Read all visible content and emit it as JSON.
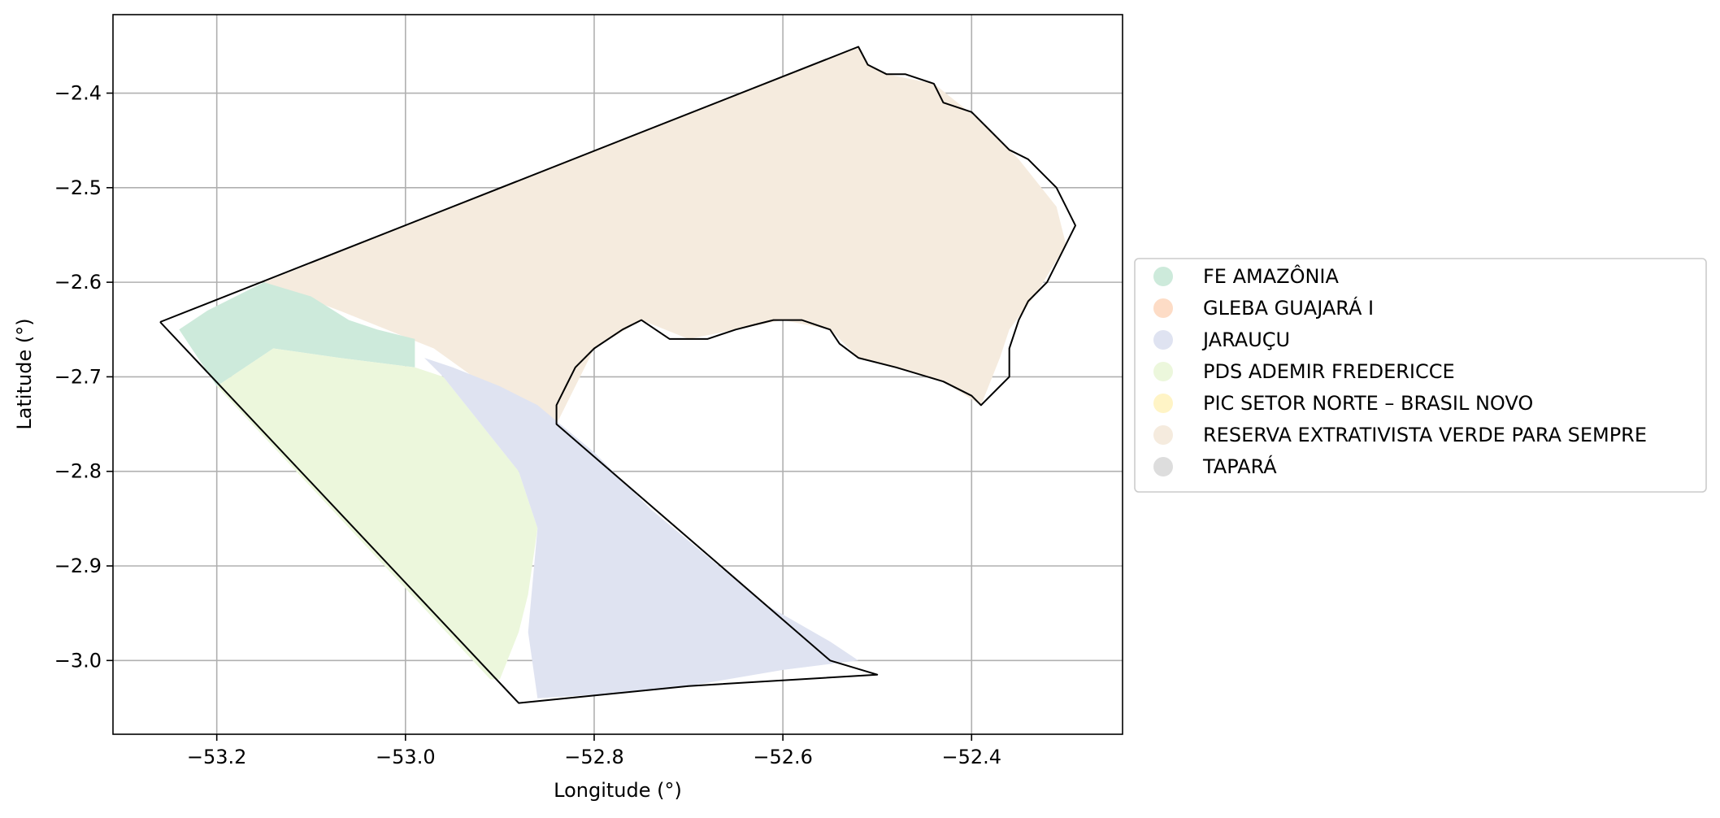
{
  "map": {
    "type": "choropleth",
    "xlabel": "Longitude (°)",
    "ylabel": "Latitude (°)",
    "xlim": [
      -53.31,
      -52.24
    ],
    "ylim": [
      -3.078,
      -2.317
    ],
    "xticks": [
      -53.2,
      -53.0,
      -52.8,
      -52.6,
      -52.4
    ],
    "yticks": [
      -2.4,
      -2.5,
      -2.6,
      -2.7,
      -2.8,
      -2.9,
      -3.0
    ],
    "grid": true,
    "legend_position": "center-right outside",
    "categories": [
      {
        "name": "FE AMAZÔNIA",
        "color": "#cdeadb"
      },
      {
        "name": "GLEBA GUAJARÁ I",
        "color": "#fddcc6"
      },
      {
        "name": "JARAUÇU",
        "color": "#dfe3f1"
      },
      {
        "name": "PDS ADEMIR FREDERICCE",
        "color": "#ecf7dc"
      },
      {
        "name": "PIC SETOR NORTE – BRASIL NOVO",
        "color": "#fff4c6"
      },
      {
        "name": "RESERVA EXTRATIVISTA VERDE PARA SEMPRE",
        "color": "#f5ebde"
      },
      {
        "name": "TAPARÁ",
        "color": "#dddddd"
      }
    ],
    "regions": [
      {
        "category": "RESERVA EXTRATIVISTA VERDE PARA SEMPRE",
        "points": [
          [
            -53.15,
            -2.6
          ],
          [
            -52.52,
            -2.351
          ],
          [
            -52.51,
            -2.37
          ],
          [
            -52.49,
            -2.38
          ],
          [
            -52.44,
            -2.39
          ],
          [
            -52.39,
            -2.43
          ],
          [
            -52.35,
            -2.47
          ],
          [
            -52.31,
            -2.52
          ],
          [
            -52.3,
            -2.56
          ],
          [
            -52.33,
            -2.61
          ],
          [
            -52.36,
            -2.65
          ],
          [
            -52.37,
            -2.68
          ],
          [
            -52.39,
            -2.73
          ],
          [
            -52.43,
            -2.705
          ],
          [
            -52.52,
            -2.68
          ],
          [
            -52.55,
            -2.65
          ],
          [
            -52.6,
            -2.64
          ],
          [
            -52.65,
            -2.65
          ],
          [
            -52.7,
            -2.66
          ],
          [
            -52.75,
            -2.64
          ],
          [
            -52.8,
            -2.67
          ],
          [
            -52.84,
            -2.75
          ],
          [
            -52.9,
            -2.72
          ],
          [
            -52.97,
            -2.67
          ],
          [
            -53.07,
            -2.63
          ]
        ]
      },
      {
        "category": "FE AMAZÔNIA",
        "points": [
          [
            -53.24,
            -2.65
          ],
          [
            -53.21,
            -2.63
          ],
          [
            -53.15,
            -2.6
          ],
          [
            -53.1,
            -2.615
          ],
          [
            -53.06,
            -2.64
          ],
          [
            -53.03,
            -2.65
          ],
          [
            -52.99,
            -2.66
          ],
          [
            -52.99,
            -2.69
          ],
          [
            -53.07,
            -2.68
          ],
          [
            -53.14,
            -2.67
          ],
          [
            -53.2,
            -2.71
          ]
        ]
      },
      {
        "category": "PDS ADEMIR FREDERICCE",
        "points": [
          [
            -53.2,
            -2.71
          ],
          [
            -53.14,
            -2.67
          ],
          [
            -53.07,
            -2.68
          ],
          [
            -52.99,
            -2.69
          ],
          [
            -52.96,
            -2.7
          ],
          [
            -52.92,
            -2.75
          ],
          [
            -52.88,
            -2.8
          ],
          [
            -52.86,
            -2.86
          ],
          [
            -52.87,
            -2.93
          ],
          [
            -52.88,
            -2.97
          ],
          [
            -52.9,
            -3.02
          ],
          [
            -52.91,
            -3.02
          ]
        ]
      },
      {
        "category": "JARAUÇU",
        "points": [
          [
            -52.98,
            -2.68
          ],
          [
            -52.95,
            -2.69
          ],
          [
            -52.9,
            -2.71
          ],
          [
            -52.86,
            -2.73
          ],
          [
            -52.8,
            -2.78
          ],
          [
            -52.74,
            -2.84
          ],
          [
            -52.68,
            -2.89
          ],
          [
            -52.62,
            -2.94
          ],
          [
            -52.55,
            -2.98
          ],
          [
            -52.52,
            -3.0
          ],
          [
            -52.6,
            -3.01
          ],
          [
            -52.7,
            -3.027
          ],
          [
            -52.78,
            -3.035
          ],
          [
            -52.86,
            -3.04
          ],
          [
            -52.87,
            -2.97
          ],
          [
            -52.86,
            -2.86
          ],
          [
            -52.88,
            -2.8
          ],
          [
            -52.92,
            -2.75
          ],
          [
            -52.96,
            -2.7
          ]
        ]
      }
    ],
    "outline": [
      [
        -53.26,
        -2.642
      ],
      [
        -52.52,
        -2.351
      ],
      [
        -52.51,
        -2.37
      ],
      [
        -52.49,
        -2.38
      ],
      [
        -52.47,
        -2.38
      ],
      [
        -52.44,
        -2.39
      ],
      [
        -52.43,
        -2.41
      ],
      [
        -52.4,
        -2.42
      ],
      [
        -52.38,
        -2.44
      ],
      [
        -52.36,
        -2.46
      ],
      [
        -52.34,
        -2.47
      ],
      [
        -52.32,
        -2.49
      ],
      [
        -52.31,
        -2.5
      ],
      [
        -52.3,
        -2.52
      ],
      [
        -52.29,
        -2.54
      ],
      [
        -52.3,
        -2.56
      ],
      [
        -52.31,
        -2.58
      ],
      [
        -52.32,
        -2.6
      ],
      [
        -52.34,
        -2.62
      ],
      [
        -52.35,
        -2.64
      ],
      [
        -52.36,
        -2.67
      ],
      [
        -52.36,
        -2.7
      ],
      [
        -52.37,
        -2.71
      ],
      [
        -52.39,
        -2.73
      ],
      [
        -52.4,
        -2.72
      ],
      [
        -52.43,
        -2.705
      ],
      [
        -52.48,
        -2.69
      ],
      [
        -52.52,
        -2.68
      ],
      [
        -52.54,
        -2.665
      ],
      [
        -52.55,
        -2.65
      ],
      [
        -52.58,
        -2.64
      ],
      [
        -52.61,
        -2.64
      ],
      [
        -52.63,
        -2.645
      ],
      [
        -52.65,
        -2.65
      ],
      [
        -52.68,
        -2.66
      ],
      [
        -52.7,
        -2.66
      ],
      [
        -52.72,
        -2.66
      ],
      [
        -52.75,
        -2.64
      ],
      [
        -52.77,
        -2.65
      ],
      [
        -52.8,
        -2.67
      ],
      [
        -52.82,
        -2.69
      ],
      [
        -52.83,
        -2.71
      ],
      [
        -52.84,
        -2.73
      ],
      [
        -52.84,
        -2.75
      ],
      [
        -52.55,
        -3.0
      ],
      [
        -52.5,
        -3.015
      ],
      [
        -52.7,
        -3.027
      ],
      [
        -52.88,
        -3.045
      ],
      [
        -53.26,
        -2.642
      ]
    ]
  }
}
